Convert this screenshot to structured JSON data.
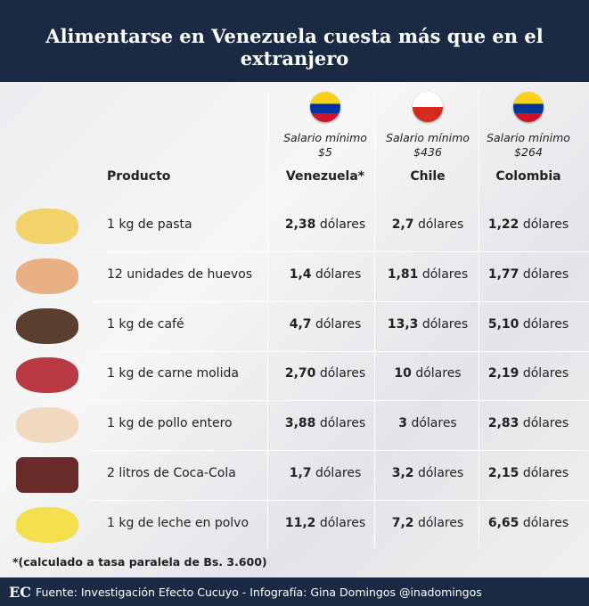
{
  "header": {
    "title": "Alimentarse en Venezuela cuesta más que en el extranjero"
  },
  "table": {
    "product_header": "Producto",
    "columns": [
      {
        "salary_label": "Salario mínimo",
        "salary": "$5",
        "country": "Venezuela*"
      },
      {
        "salary_label": "Salario mínimo",
        "salary": "$436",
        "country": "Chile"
      },
      {
        "salary_label": "Salario mínimo",
        "salary": "$264",
        "country": "Colombia"
      }
    ],
    "rows": [
      {
        "product": "1 kg de pasta",
        "prices": [
          {
            "amount": "2,38",
            "unit": "dólares"
          },
          {
            "amount": "2,7",
            "unit": "dólares"
          },
          {
            "amount": "1,22",
            "unit": "dólares"
          }
        ]
      },
      {
        "product": "12 unidades de huevos",
        "prices": [
          {
            "amount": "1,4",
            "unit": "dólares"
          },
          {
            "amount": "1,81",
            "unit": "dólares"
          },
          {
            "amount": "1,77",
            "unit": "dólares"
          }
        ]
      },
      {
        "product": "1 kg de café",
        "prices": [
          {
            "amount": "4,7",
            "unit": "dólares"
          },
          {
            "amount": "13,3",
            "unit": "dólares"
          },
          {
            "amount": "5,10",
            "unit": "dólares"
          }
        ]
      },
      {
        "product": "1 kg de carne molida",
        "prices": [
          {
            "amount": "2,70",
            "unit": "dólares"
          },
          {
            "amount": "10",
            "unit": "dólares"
          },
          {
            "amount": "2,19",
            "unit": "dólares"
          }
        ]
      },
      {
        "product": "1 kg de pollo entero",
        "prices": [
          {
            "amount": "3,88",
            "unit": "dólares"
          },
          {
            "amount": "3",
            "unit": "dólares"
          },
          {
            "amount": "2,83",
            "unit": "dólares"
          }
        ]
      },
      {
        "product": "2 litros de Coca-Cola",
        "prices": [
          {
            "amount": "1,7",
            "unit": "dólares"
          },
          {
            "amount": "3,2",
            "unit": "dólares"
          },
          {
            "amount": "2,15",
            "unit": "dólares"
          }
        ]
      },
      {
        "product": "1 kg de leche en polvo",
        "prices": [
          {
            "amount": "11,2",
            "unit": "dólares"
          },
          {
            "amount": "7,2",
            "unit": "dólares"
          },
          {
            "amount": "6,65",
            "unit": "dólares"
          }
        ]
      }
    ]
  },
  "footnote": "*(calculado a tasa paralela de Bs. 3.600)",
  "footer": {
    "logo": "EC",
    "source": "Fuente: Investigación Efecto Cucuyo - Infografía: Gina Domingos @inadomingos"
  }
}
